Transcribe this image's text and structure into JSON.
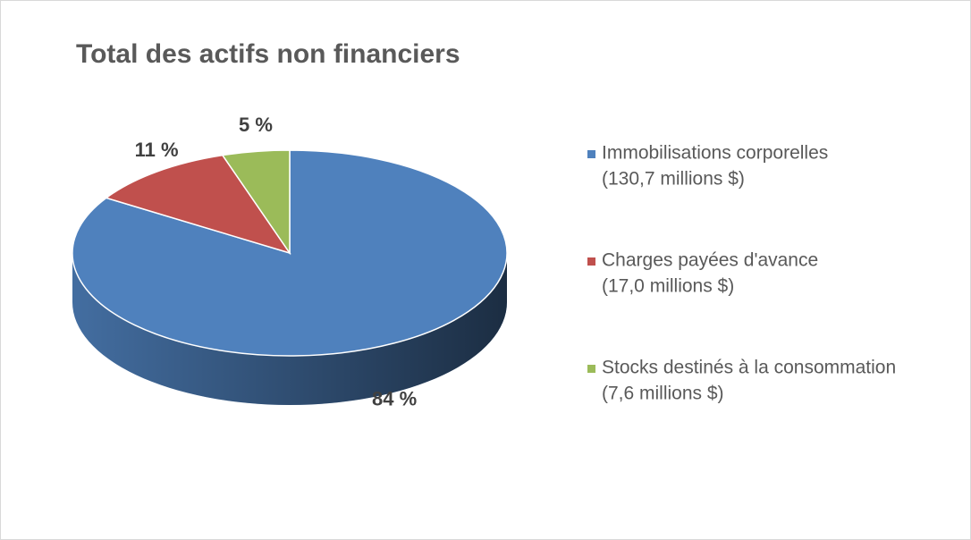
{
  "chart_data": {
    "type": "pie3d",
    "title": "Total des actifs non financiers",
    "categories": [
      "Immobilisations corporelles",
      "Charges payées d'avance",
      "Stocks destinés à la consommation"
    ],
    "category_details": [
      "(130,7 millions $)",
      "(17,0 millions $)",
      "(7,6 millions $)"
    ],
    "values": [
      84,
      11,
      5
    ],
    "value_labels": [
      "84 %",
      "11 %",
      "5 %"
    ],
    "colors": [
      "#4f81bd",
      "#c0504d",
      "#9bbb59"
    ],
    "legend": "right"
  }
}
